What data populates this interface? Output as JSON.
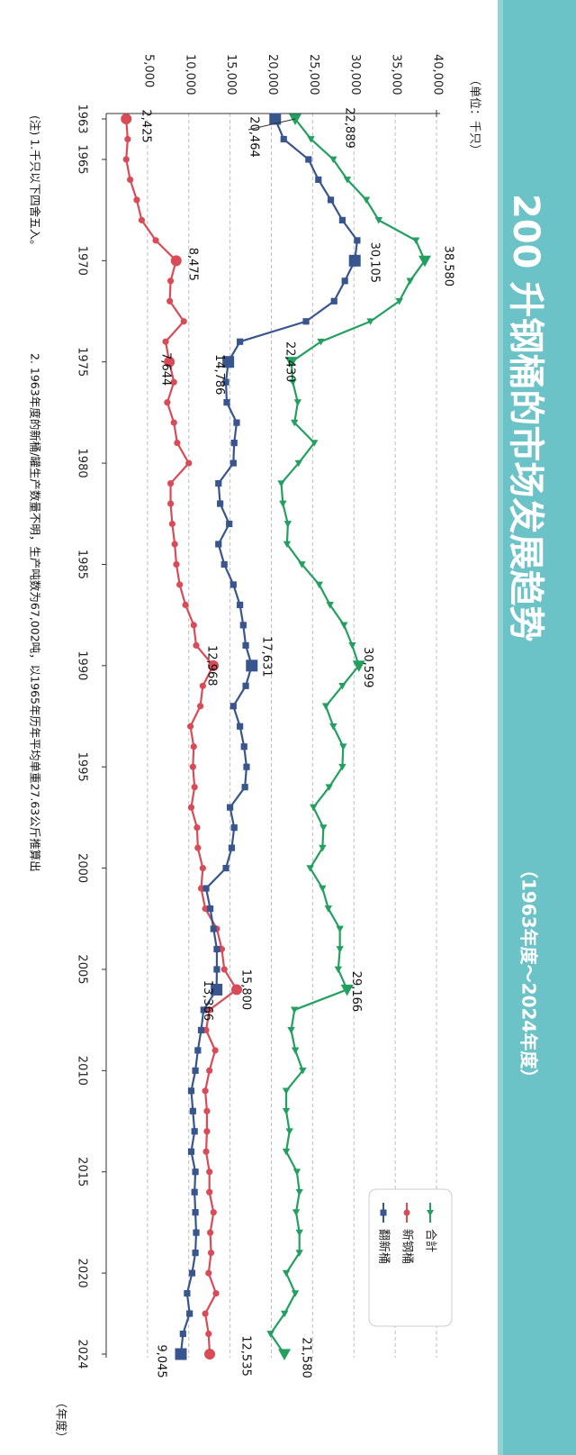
{
  "colors": {
    "banner": "#6cc3c7",
    "banner_edge": "#8fd3d5",
    "total": "#23a05f",
    "new": "#d84b57",
    "renewed": "#38558e",
    "grid": "#bdbdbd"
  },
  "title": {
    "main": "200 升钢桶的市场发展趋势",
    "sub": "（1963年度～2024年度）"
  },
  "units": {
    "y_unit": "（单位：千只）",
    "x_unit": "（年度）"
  },
  "notes": {
    "note1": "(注) 1.千只以下四舍五入。",
    "note2": "2. 1963年度的新桶/罐生产数量不明，生产吨数为67,002吨，以1965年历年平均单重27.63公斤推算出"
  },
  "chart_data": {
    "type": "line",
    "xlabel": "（年度）",
    "ylabel": "（单位：千只）",
    "ylim": [
      0,
      40000
    ],
    "xlim": [
      1963,
      2024
    ],
    "y_ticks": [
      5000,
      10000,
      15000,
      20000,
      25000,
      30000,
      35000,
      40000
    ],
    "y_tick_labels": [
      "5,000",
      "10,000",
      "15,000",
      "20,000",
      "25,000",
      "30,000",
      "35,000",
      "40,000"
    ],
    "x_ticks": [
      1963,
      1965,
      1970,
      1975,
      1980,
      1985,
      1990,
      1995,
      2000,
      2005,
      2010,
      2015,
      2020,
      2024
    ],
    "x_tick_labels": [
      "1963",
      "1965",
      "1970",
      "1975",
      "1980",
      "1985",
      "1990",
      "1995",
      "2000",
      "2005",
      "2010",
      "2015",
      "2020",
      "2024"
    ],
    "grid": true,
    "legend_position": "bottom-right",
    "legend": [
      "合計",
      "新钢桶",
      "翻新桶"
    ],
    "x": [
      1963,
      1964,
      1965,
      1966,
      1967,
      1968,
      1969,
      1970,
      1971,
      1972,
      1973,
      1974,
      1975,
      1976,
      1977,
      1978,
      1979,
      1980,
      1981,
      1982,
      1983,
      1984,
      1985,
      1986,
      1987,
      1988,
      1989,
      1990,
      1991,
      1992,
      1993,
      1994,
      1995,
      1996,
      1997,
      1998,
      1999,
      2000,
      2001,
      2002,
      2003,
      2004,
      2005,
      2006,
      2007,
      2008,
      2009,
      2010,
      2011,
      2012,
      2013,
      2014,
      2015,
      2016,
      2017,
      2018,
      2019,
      2020,
      2021,
      2022,
      2023,
      2024
    ],
    "series": [
      {
        "name": "合計",
        "values": [
          22889,
          24800,
          27500,
          29200,
          31500,
          33000,
          37500,
          38580,
          36800,
          35500,
          32000,
          26000,
          22430,
          22600,
          23200,
          22800,
          25200,
          23300,
          21200,
          21400,
          22000,
          21900,
          23700,
          25800,
          27100,
          28800,
          29800,
          30599,
          28600,
          26600,
          27500,
          28700,
          28600,
          27000,
          25100,
          26300,
          26200,
          24700,
          26200,
          26900,
          28300,
          28300,
          28100,
          29166,
          22800,
          22400,
          22900,
          23800,
          21800,
          21800,
          22200,
          21800,
          23100,
          23400,
          23000,
          23400,
          23400,
          21800,
          22900,
          21600,
          19900,
          21580
        ]
      },
      {
        "name": "新钢桶",
        "values": [
          2425,
          2600,
          2425,
          2900,
          3700,
          4300,
          6000,
          8475,
          7800,
          7700,
          9400,
          7200,
          7644,
          8200,
          7400,
          8200,
          8600,
          10000,
          7800,
          7800,
          8000,
          8300,
          8500,
          8900,
          9600,
          10600,
          10900,
          12968,
          11700,
          11400,
          10200,
          10600,
          10500,
          10700,
          10300,
          11000,
          11100,
          11700,
          11500,
          12000,
          13400,
          14000,
          14300,
          15800,
          12500,
          12100,
          13200,
          12500,
          12000,
          12200,
          12200,
          12100,
          12500,
          12500,
          13000,
          12600,
          12700,
          12400,
          13300,
          12000,
          12400,
          12535
        ]
      },
      {
        "name": "翻新桶",
        "values": [
          20464,
          21500,
          24500,
          25700,
          27200,
          28600,
          30400,
          30105,
          28900,
          27600,
          24200,
          16200,
          14786,
          14500,
          14600,
          15800,
          15500,
          15400,
          13600,
          13800,
          14900,
          13600,
          14300,
          15400,
          16200,
          16600,
          16900,
          17631,
          16900,
          15400,
          16200,
          16700,
          17000,
          16800,
          15000,
          15500,
          15200,
          14500,
          12100,
          12600,
          13000,
          13400,
          13400,
          13366,
          11800,
          11500,
          11100,
          10800,
          10300,
          10500,
          10700,
          10300,
          10800,
          10700,
          10800,
          10900,
          10800,
          10400,
          9800,
          10100,
          9300,
          9045
        ]
      }
    ],
    "data_labels": [
      {
        "series": "合計",
        "x": 1963,
        "y": 22889,
        "text": "22,889"
      },
      {
        "series": "合計",
        "x": 1970,
        "y": 38580,
        "text": "38,580"
      },
      {
        "series": "合計",
        "x": 1975,
        "y": 22430,
        "text": "22,430"
      },
      {
        "series": "合計",
        "x": 1990,
        "y": 30599,
        "text": "30,599"
      },
      {
        "series": "合計",
        "x": 2006,
        "y": 29166,
        "text": "29,166"
      },
      {
        "series": "合計",
        "x": 2024,
        "y": 21580,
        "text": "21,580"
      },
      {
        "series": "新钢桶",
        "x": 1963,
        "y": 2425,
        "text": "2,425"
      },
      {
        "series": "新钢桶",
        "x": 1970,
        "y": 8475,
        "text": "8,475"
      },
      {
        "series": "新钢桶",
        "x": 1975,
        "y": 7644,
        "text": "7,644"
      },
      {
        "series": "新钢桶",
        "x": 1990,
        "y": 12968,
        "text": "12,968"
      },
      {
        "series": "新钢桶",
        "x": 2006,
        "y": 15800,
        "text": "15,800"
      },
      {
        "series": "新钢桶",
        "x": 2024,
        "y": 12535,
        "text": "12,535"
      },
      {
        "series": "翻新桶",
        "x": 1963,
        "y": 20464,
        "text": "20,464"
      },
      {
        "series": "翻新桶",
        "x": 1970,
        "y": 30105,
        "text": "30,105"
      },
      {
        "series": "翻新桶",
        "x": 1975,
        "y": 14786,
        "text": "14,786"
      },
      {
        "series": "翻新桶",
        "x": 1990,
        "y": 17631,
        "text": "17,631"
      },
      {
        "series": "翻新桶",
        "x": 2006,
        "y": 13366,
        "text": "13,366"
      },
      {
        "series": "翻新桶",
        "x": 2024,
        "y": 9045,
        "text": "9,045"
      }
    ]
  }
}
